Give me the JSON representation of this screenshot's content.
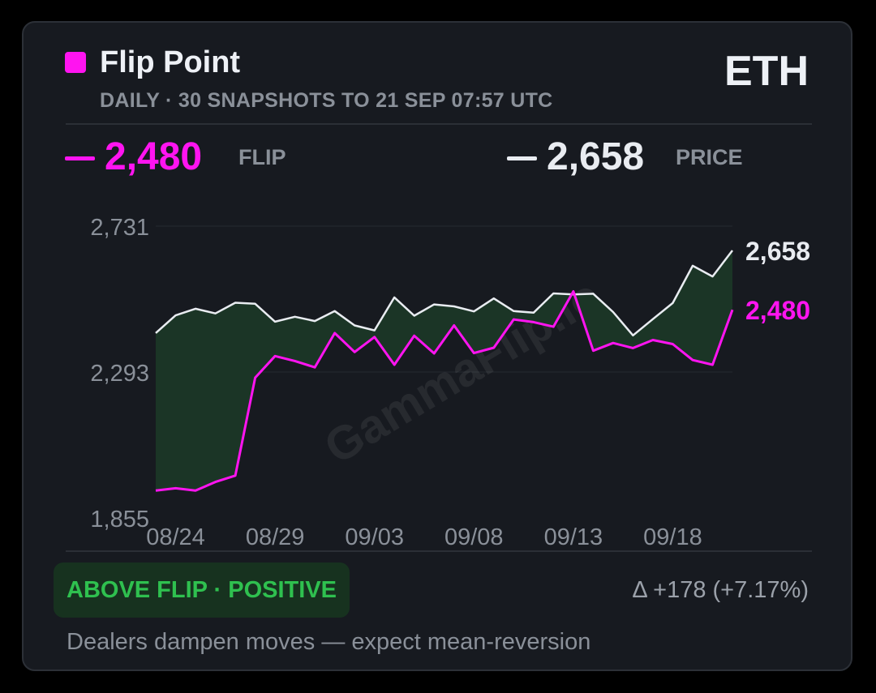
{
  "header": {
    "title": "Flip Point",
    "symbol": "ETH",
    "subtitle": "DAILY · 30 SNAPSHOTS TO 21 SEP 07:57 UTC"
  },
  "stats": {
    "flip_value": "2,480",
    "flip_label": "FLIP",
    "price_value": "2,658",
    "price_label": "PRICE"
  },
  "colors": {
    "flip": "#ff14f0",
    "price": "#e9ecf1",
    "fill": "#1b3526",
    "positive": "#2fc04f"
  },
  "footer": {
    "regime_badge": "ABOVE FLIP · POSITIVE",
    "delta": "Δ +178 (+7.17%)",
    "note": "Dealers dampen moves — expect mean-reversion"
  },
  "watermark": "GammaFlip.io",
  "chart_data": {
    "type": "line",
    "ylim": [
      1855,
      2731
    ],
    "y_ticks": [
      "2,731",
      "2,293",
      "1,855"
    ],
    "x_tick_labels": [
      "08/24",
      "08/29",
      "09/03",
      "09/08",
      "09/13",
      "09/18"
    ],
    "x_tick_index": [
      1,
      6,
      11,
      16,
      21,
      26
    ],
    "end_labels": {
      "price": "2,658",
      "flip": "2,480"
    },
    "grid": true,
    "series": [
      {
        "name": "PRICE",
        "values": [
          2410,
          2463,
          2483,
          2469,
          2501,
          2498,
          2444,
          2459,
          2446,
          2476,
          2433,
          2418,
          2517,
          2462,
          2496,
          2490,
          2475,
          2514,
          2476,
          2471,
          2529,
          2526,
          2528,
          2473,
          2403,
          2452,
          2500,
          2612,
          2580,
          2658
        ]
      },
      {
        "name": "FLIP",
        "values": [
          1937,
          1944,
          1937,
          1963,
          1982,
          2276,
          2341,
          2326,
          2307,
          2410,
          2353,
          2398,
          2315,
          2402,
          2349,
          2433,
          2350,
          2366,
          2451,
          2443,
          2429,
          2535,
          2357,
          2380,
          2365,
          2389,
          2377,
          2329,
          2315,
          2480
        ]
      }
    ]
  }
}
